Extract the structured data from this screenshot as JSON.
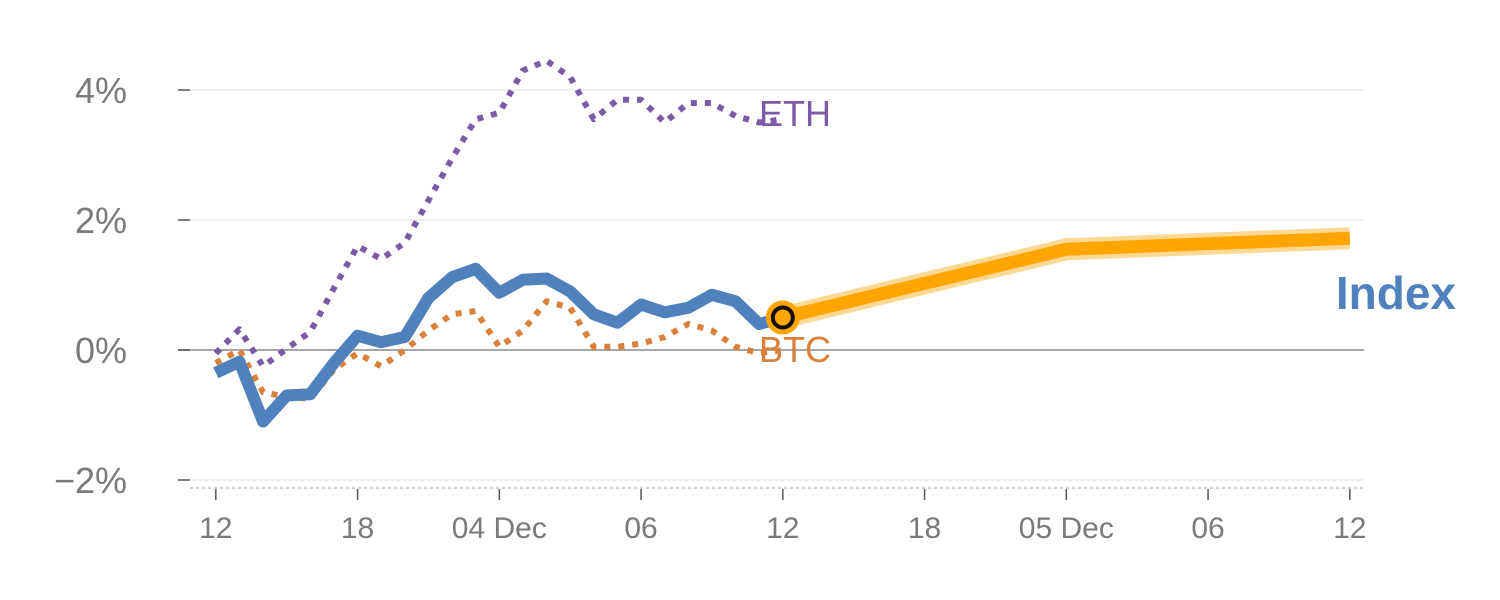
{
  "chart_data": {
    "type": "line",
    "title": "",
    "xlabel": "",
    "ylabel": "",
    "ylim": [
      -2,
      4
    ],
    "y_ticks": [
      {
        "value": -2,
        "label": "−2%"
      },
      {
        "value": 0,
        "label": "0%"
      },
      {
        "value": 2,
        "label": "2%"
      },
      {
        "value": 4,
        "label": "4%"
      }
    ],
    "x_ticks": [
      {
        "t": 0,
        "label": "12"
      },
      {
        "t": 6,
        "label": "18"
      },
      {
        "t": 12,
        "label": "04 Dec"
      },
      {
        "t": 18,
        "label": "06"
      },
      {
        "t": 24,
        "label": "12"
      },
      {
        "t": 30,
        "label": "18"
      },
      {
        "t": 36,
        "label": "05 Dec"
      },
      {
        "t": 42,
        "label": "06"
      },
      {
        "t": 48,
        "label": "12"
      }
    ],
    "x_range": [
      -1.6,
      48.6
    ],
    "current_point": {
      "t": 24,
      "value": 0.5
    },
    "series": [
      {
        "name": "ETH",
        "label": "ETH",
        "style": "dotted",
        "color": "#7b5ba6",
        "t": [
          0,
          1,
          2,
          3,
          4,
          5,
          6,
          7,
          8,
          9,
          10,
          11,
          12,
          13,
          14,
          15,
          16,
          17,
          18,
          19,
          20,
          21,
          22,
          23,
          24
        ],
        "values": [
          -0.05,
          0.32,
          -0.25,
          0.02,
          0.28,
          0.95,
          1.6,
          1.4,
          1.65,
          2.3,
          2.95,
          3.55,
          3.65,
          4.3,
          4.45,
          4.2,
          3.55,
          3.85,
          3.85,
          3.5,
          3.8,
          3.8,
          3.6,
          3.5,
          3.55
        ]
      },
      {
        "name": "BTC",
        "label": "BTC",
        "style": "dotted",
        "color": "#d9813b",
        "t": [
          0,
          1,
          2,
          3,
          4,
          5,
          6,
          7,
          8,
          9,
          10,
          11,
          12,
          13,
          14,
          15,
          16,
          17,
          18,
          19,
          20,
          21,
          22,
          23,
          24
        ],
        "values": [
          -0.2,
          0.0,
          -0.65,
          -0.72,
          -0.75,
          -0.3,
          -0.05,
          -0.25,
          0.0,
          0.3,
          0.55,
          0.6,
          0.05,
          0.3,
          0.75,
          0.65,
          0.05,
          0.05,
          0.1,
          0.2,
          0.4,
          0.3,
          0.05,
          -0.05,
          0.0
        ]
      },
      {
        "name": "Index",
        "label": "Index",
        "style": "solid",
        "color": "#4f81bd",
        "t": [
          0,
          1,
          2,
          3,
          4,
          5,
          6,
          7,
          8,
          9,
          10,
          11,
          12,
          13,
          14,
          15,
          16,
          17,
          18,
          19,
          20,
          21,
          22,
          23,
          24
        ],
        "values": [
          -0.35,
          -0.18,
          -1.1,
          -0.7,
          -0.68,
          -0.2,
          0.22,
          0.12,
          0.2,
          0.8,
          1.12,
          1.25,
          0.88,
          1.08,
          1.1,
          0.9,
          0.55,
          0.42,
          0.7,
          0.58,
          0.65,
          0.85,
          0.75,
          0.4,
          0.5
        ]
      },
      {
        "name": "Index forecast",
        "style": "solid-thick",
        "color": "#ffa500",
        "t": [
          24,
          36,
          48
        ],
        "values": [
          0.5,
          1.55,
          1.72
        ]
      }
    ]
  }
}
